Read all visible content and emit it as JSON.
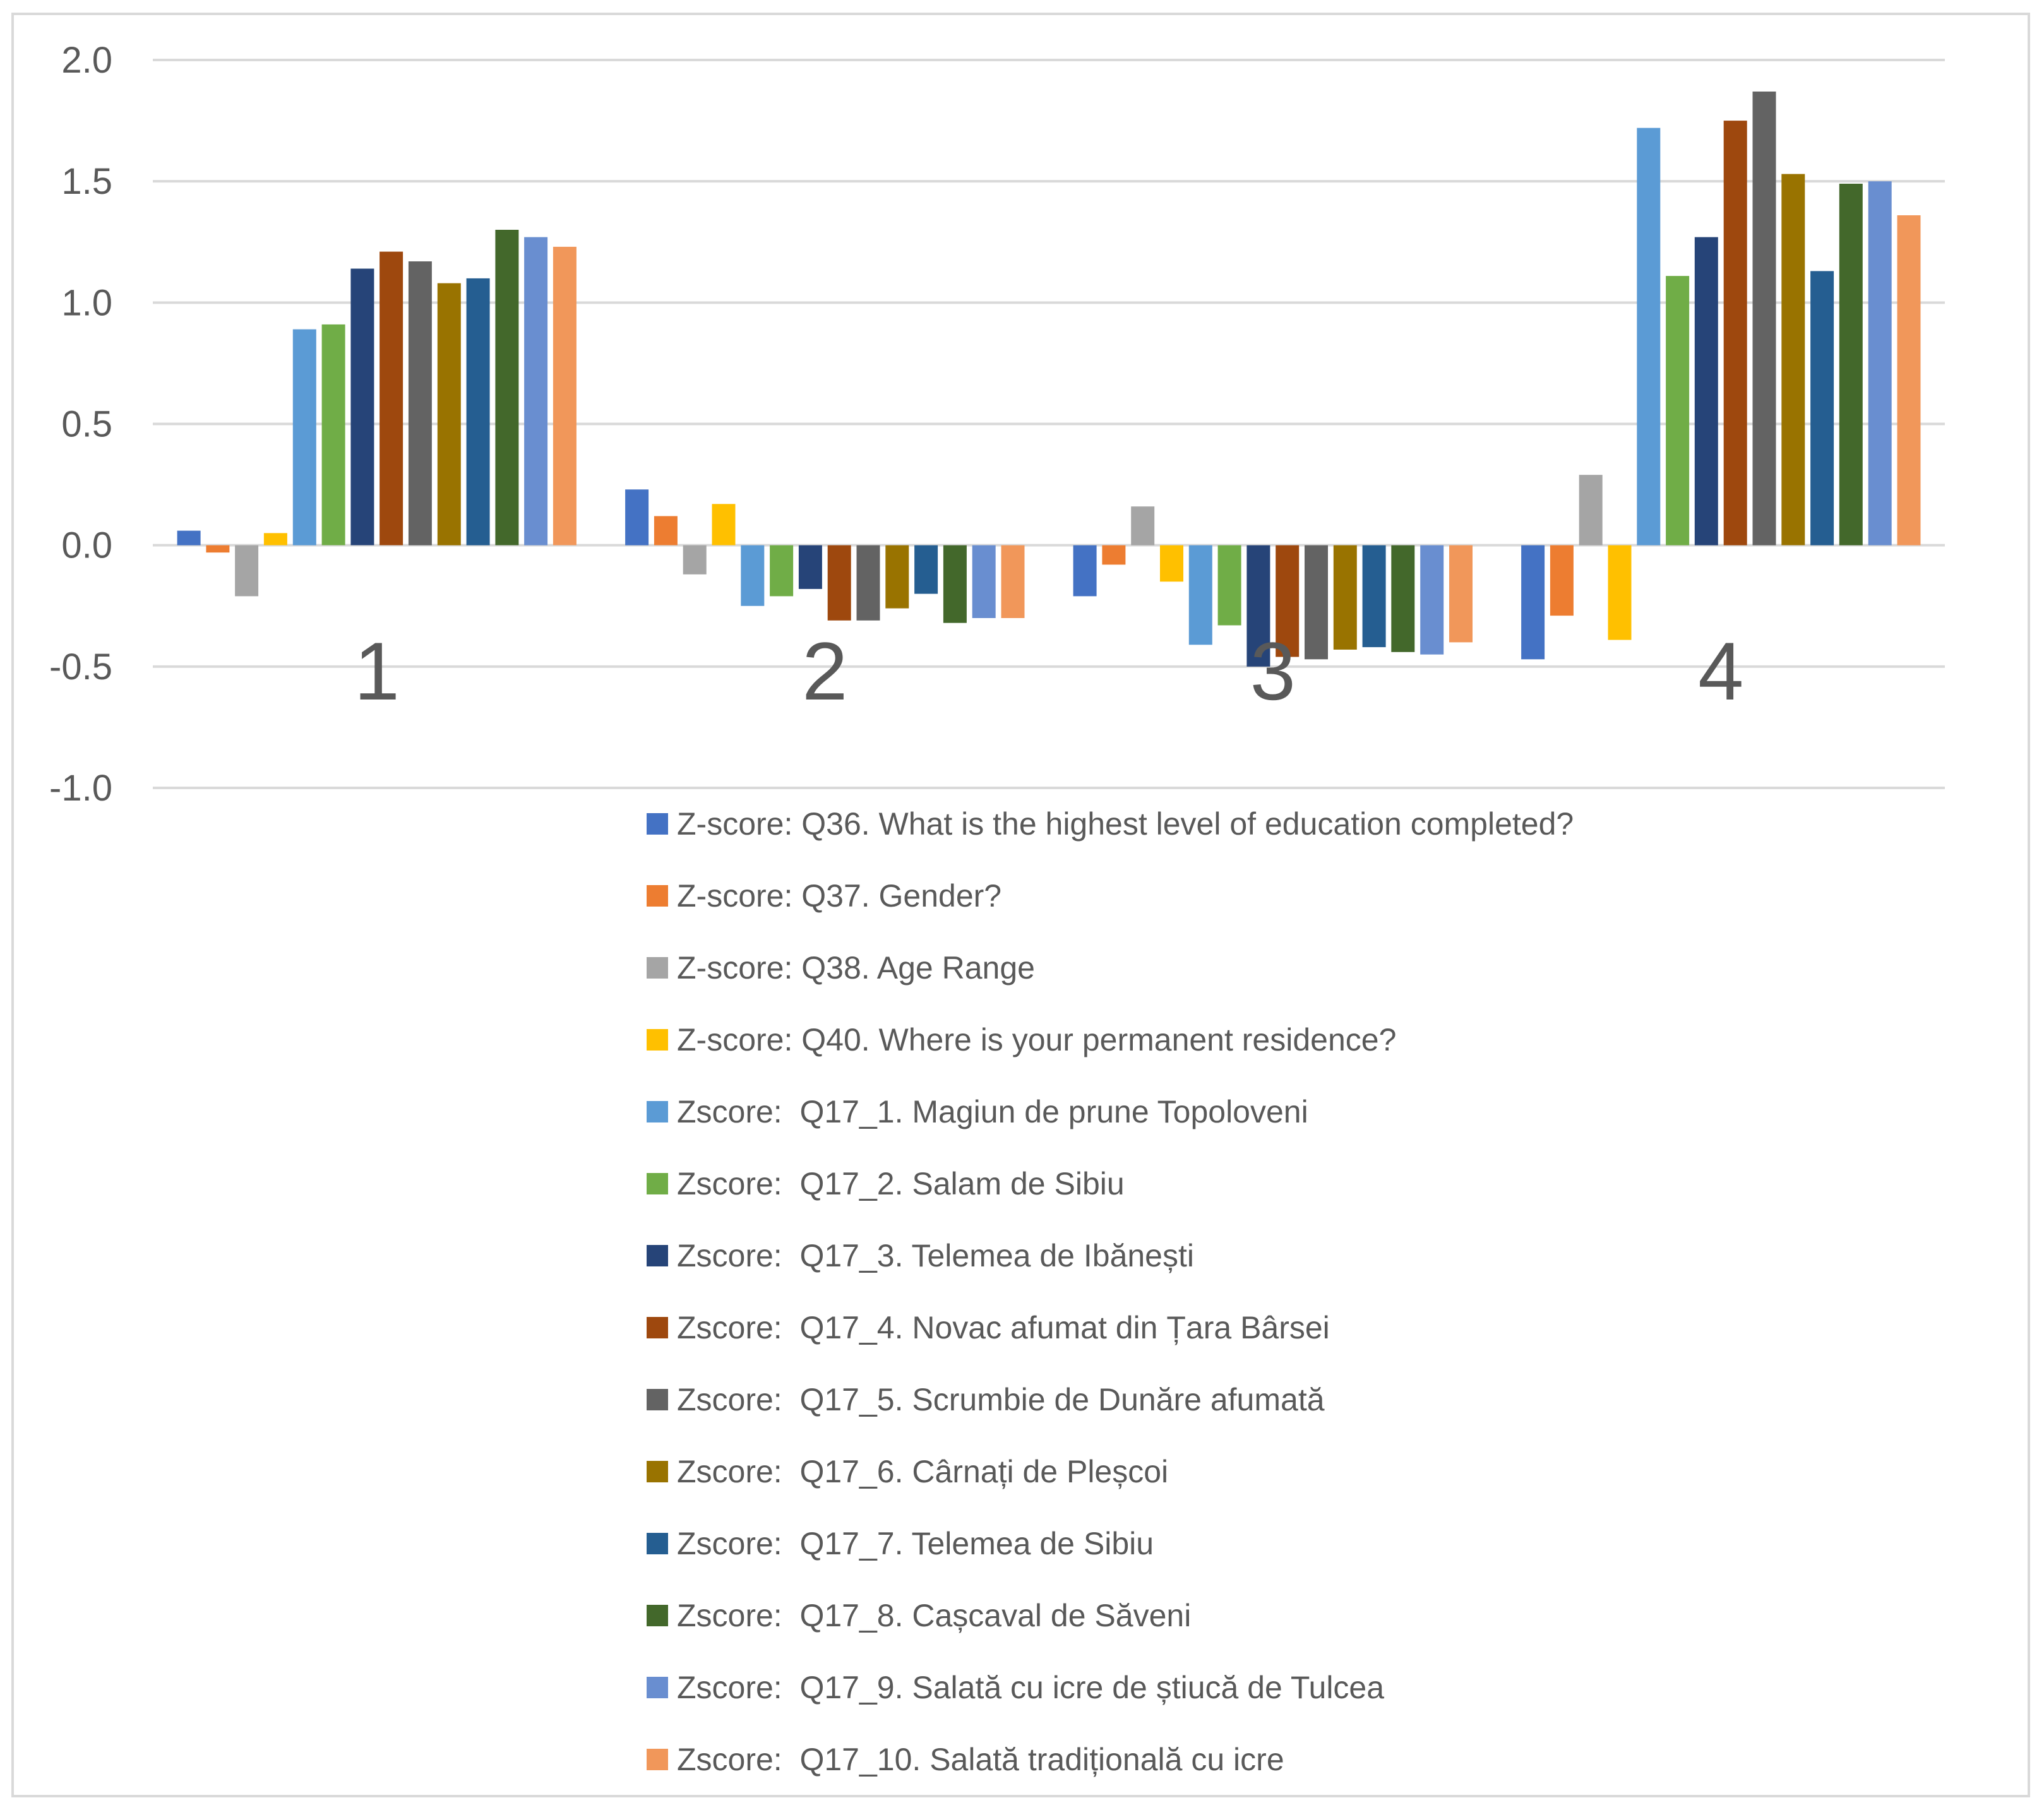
{
  "chart_data": {
    "type": "bar",
    "title": "",
    "xlabel": "",
    "ylabel": "",
    "ylim": [
      -1.0,
      2.0
    ],
    "yticks": [
      "2.0",
      "1.5",
      "1.0",
      "0.5",
      "0.0",
      "-0.5",
      "-1.0"
    ],
    "categories": [
      "1",
      "2",
      "3",
      "4"
    ],
    "legend_position": "bottom",
    "grid": true,
    "series": [
      {
        "name": "Z-score: Q36. What is the highest level of education completed?",
        "color": "#4472c4",
        "values": [
          0.06,
          0.23,
          -0.21,
          -0.47
        ]
      },
      {
        "name": "Z-score: Q37. Gender?",
        "color": "#ed7d31",
        "values": [
          -0.03,
          0.12,
          -0.08,
          -0.29
        ]
      },
      {
        "name": "Z-score: Q38. Age Range",
        "color": "#a5a5a5",
        "values": [
          -0.21,
          -0.12,
          0.16,
          0.29
        ]
      },
      {
        "name": "Z-score: Q40. Where is your permanent residence?",
        "color": "#ffc000",
        "values": [
          0.05,
          0.17,
          -0.15,
          -0.39
        ]
      },
      {
        "name": "Zscore:  Q17_1. Magiun de prune Topoloveni",
        "color": "#5b9bd5",
        "values": [
          0.89,
          -0.25,
          -0.41,
          1.72
        ]
      },
      {
        "name": "Zscore:  Q17_2. Salam de Sibiu",
        "color": "#70ad47",
        "values": [
          0.91,
          -0.21,
          -0.33,
          1.11
        ]
      },
      {
        "name": "Zscore:  Q17_3. Telemea de Ibănești",
        "color": "#264478",
        "values": [
          1.14,
          -0.18,
          -0.5,
          1.27
        ]
      },
      {
        "name": "Zscore:  Q17_4. Novac afumat din Țara Bârsei",
        "color": "#9e480e",
        "values": [
          1.21,
          -0.31,
          -0.46,
          1.75
        ]
      },
      {
        "name": "Zscore:  Q17_5. Scrumbie de Dunăre afumată",
        "color": "#636363",
        "values": [
          1.17,
          -0.31,
          -0.47,
          1.87
        ]
      },
      {
        "name": "Zscore:  Q17_6. Cârnați de Pleșcoi",
        "color": "#997300",
        "values": [
          1.08,
          -0.26,
          -0.43,
          1.53
        ]
      },
      {
        "name": "Zscore:  Q17_7. Telemea de Sibiu",
        "color": "#255e91",
        "values": [
          1.1,
          -0.2,
          -0.42,
          1.13
        ]
      },
      {
        "name": "Zscore:  Q17_8. Cașcaval de Săveni",
        "color": "#43682b",
        "values": [
          1.3,
          -0.32,
          -0.44,
          1.49
        ]
      },
      {
        "name": "Zscore:  Q17_9. Salată cu icre de știucă de Tulcea",
        "color": "#698ed0",
        "values": [
          1.27,
          -0.3,
          -0.45,
          1.5
        ]
      },
      {
        "name": "Zscore:  Q17_10. Salată tradițională cu icre",
        "color": "#f1975a",
        "values": [
          1.23,
          -0.3,
          -0.4,
          1.36
        ]
      }
    ]
  }
}
